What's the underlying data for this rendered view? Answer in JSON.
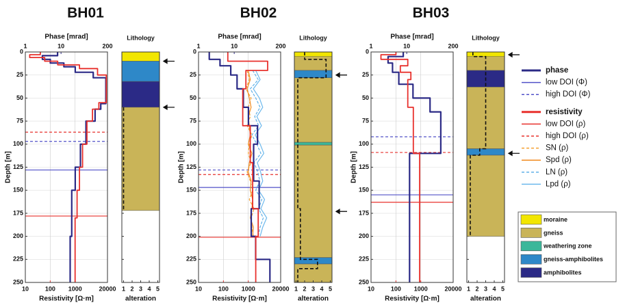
{
  "chart_data": [
    {
      "type": "line",
      "title": "BH01",
      "x2_label": "Phase [mrad]",
      "x_label": "Resistivity [Ω·m]",
      "y_label": "Depth [m]",
      "x2lim": [
        1,
        200
      ],
      "x2ticks": [
        1,
        10,
        200
      ],
      "xlim": [
        10,
        20000
      ],
      "xticks": [
        10,
        100,
        1000,
        20000
      ],
      "ylim": [
        0,
        250
      ],
      "yticks": [
        0,
        25,
        50,
        75,
        100,
        125,
        150,
        175,
        200,
        225,
        250
      ],
      "log_x": true,
      "grid": true,
      "series": [
        {
          "color": "#2b2a86",
          "width": 2.2,
          "dash": false,
          "axis": "x2",
          "depth": [
            0,
            4,
            4,
            8,
            8,
            12,
            12,
            16,
            16,
            22,
            22,
            28,
            28,
            56,
            56,
            62,
            62,
            75,
            75,
            100,
            100,
            125,
            125,
            150,
            150,
            200,
            200,
            250
          ],
          "values": [
            8,
            8,
            3,
            3,
            5,
            5,
            12,
            12,
            25,
            25,
            80,
            80,
            180,
            180,
            130,
            130,
            90,
            90,
            50,
            50,
            35,
            35,
            25,
            25,
            20,
            20,
            18,
            18
          ]
        },
        {
          "color": "#e8302c",
          "width": 1.8,
          "dash": false,
          "axis": "x",
          "depth": [
            0,
            3,
            3,
            6,
            6,
            10,
            10,
            14,
            14,
            18,
            18,
            25,
            25,
            55,
            55,
            62,
            62,
            75,
            75,
            100,
            100,
            125,
            125,
            150,
            150,
            180,
            180,
            250
          ],
          "values": [
            40,
            40,
            15,
            15,
            60,
            60,
            200,
            200,
            1500,
            1500,
            8000,
            8000,
            18000,
            18000,
            9000,
            9000,
            5000,
            5000,
            3000,
            3000,
            2000,
            2000,
            1500,
            1500,
            1200,
            1200,
            1000,
            1000
          ]
        }
      ],
      "doi": [
        {
          "color": "#5050c8",
          "dash": false,
          "depth": 128
        },
        {
          "color": "#5050c8",
          "dash": true,
          "depth": 97
        },
        {
          "color": "#e8302c",
          "dash": false,
          "depth": 178
        },
        {
          "color": "#e8302c",
          "dash": true,
          "depth": 87
        }
      ],
      "arrows": [
        10,
        60
      ],
      "lithology": {
        "title": "Lithology",
        "x_label": "alteration",
        "xlim": [
          0.8,
          5.2
        ],
        "xticks": [
          1,
          2,
          3,
          4,
          5
        ],
        "layers": [
          {
            "top": 0,
            "bottom": 10,
            "color": "#f2e600"
          },
          {
            "top": 10,
            "bottom": 32,
            "color": "#2e88c8"
          },
          {
            "top": 32,
            "bottom": 60,
            "color": "#2b2a86"
          },
          {
            "top": 60,
            "bottom": 172,
            "color": "#c9b458"
          }
        ],
        "alteration": {
          "depth": [
            60,
            172
          ],
          "values": [
            1,
            1
          ]
        }
      }
    },
    {
      "type": "line",
      "title": "BH02",
      "x2_label": "Phase [mrad]",
      "x_label": "Resistivity [Ω·m]",
      "y_label": "Depth [m]",
      "x2lim": [
        1,
        200
      ],
      "x2ticks": [
        1,
        10,
        200
      ],
      "xlim": [
        10,
        20000
      ],
      "xticks": [
        10,
        100,
        1000,
        20000
      ],
      "ylim": [
        0,
        250
      ],
      "yticks": [
        0,
        25,
        50,
        75,
        100,
        125,
        150,
        175,
        200,
        225,
        250
      ],
      "log_x": true,
      "grid": true,
      "series": [
        {
          "color": "#f5a030",
          "width": 1.2,
          "dash": true,
          "axis": "x",
          "depth": [
            20,
            30,
            40,
            50,
            60,
            70,
            80,
            90,
            100,
            110,
            120,
            130,
            140,
            150,
            160,
            170,
            180,
            190,
            200
          ],
          "values": [
            900,
            1100,
            800,
            1300,
            1000,
            1200,
            900,
            1400,
            1100,
            1000,
            1300,
            900,
            1200,
            1500,
            1100,
            1700,
            1300,
            1400,
            1600
          ]
        },
        {
          "color": "#f08a1e",
          "width": 1.2,
          "dash": false,
          "axis": "x",
          "depth": [
            20,
            30,
            40,
            50,
            60,
            70,
            80,
            90,
            100,
            110,
            120,
            130,
            140,
            150,
            160,
            170,
            180,
            190,
            200
          ],
          "values": [
            1000,
            1200,
            900,
            1100,
            1300,
            1000,
            1100,
            1200,
            1000,
            1400,
            1100,
            1000,
            1300,
            1200,
            1500,
            1400,
            1200,
            1600,
            1500
          ]
        },
        {
          "color": "#5fb0e8",
          "width": 1.2,
          "dash": true,
          "axis": "x",
          "depth": [
            20,
            30,
            40,
            50,
            60,
            70,
            80,
            90,
            100,
            110,
            120,
            130,
            140,
            150,
            160,
            170,
            180,
            190,
            200
          ],
          "values": [
            1500,
            2500,
            1200,
            2000,
            3000,
            1800,
            2600,
            1400,
            2200,
            3200,
            1700,
            2400,
            2900,
            2000,
            3500,
            2600,
            4000,
            3000,
            2500
          ]
        },
        {
          "color": "#6cb8ec",
          "width": 1.2,
          "dash": false,
          "axis": "x",
          "depth": [
            20,
            30,
            40,
            50,
            60,
            70,
            80,
            90,
            100,
            110,
            120,
            130,
            140,
            150,
            160,
            170,
            180,
            190,
            200
          ],
          "values": [
            2000,
            3000,
            1600,
            2800,
            3800,
            2200,
            3400,
            1900,
            3000,
            4200,
            2300,
            3100,
            3800,
            2600,
            4500,
            3200,
            5500,
            3800,
            3000
          ]
        },
        {
          "color": "#2b2a86",
          "width": 2.2,
          "dash": false,
          "axis": "x2",
          "depth": [
            0,
            8,
            8,
            15,
            15,
            25,
            25,
            40,
            40,
            60,
            60,
            80,
            80,
            100,
            100,
            140,
            140,
            170,
            170,
            200,
            200,
            225,
            225,
            250
          ],
          "values": [
            2,
            2,
            4,
            4,
            8,
            8,
            12,
            12,
            18,
            18,
            25,
            25,
            45,
            45,
            35,
            35,
            50,
            50,
            30,
            30,
            40,
            40,
            100,
            100
          ]
        },
        {
          "color": "#e8302c",
          "width": 1.8,
          "dash": false,
          "axis": "x",
          "depth": [
            0,
            10,
            10,
            20,
            20,
            40,
            40,
            80,
            80,
            120,
            120,
            170,
            170,
            200,
            200,
            250
          ],
          "values": [
            150,
            150,
            6000,
            6000,
            800,
            800,
            600,
            600,
            1200,
            1200,
            1500,
            1500,
            2500,
            2500,
            2000,
            2000
          ]
        }
      ],
      "doi": [
        {
          "color": "#5050c8",
          "dash": false,
          "depth": 147
        },
        {
          "color": "#5050c8",
          "dash": true,
          "depth": 128
        },
        {
          "color": "#e8302c",
          "dash": true,
          "depth": 133
        },
        {
          "color": "#e8302c",
          "dash": false,
          "depth": 201
        }
      ],
      "arrows": [
        25,
        173
      ],
      "lithology": {
        "title": "Lithology",
        "x_label": "alteration",
        "xlim": [
          0.8,
          5.2
        ],
        "xticks": [
          1,
          2,
          3,
          4,
          5
        ],
        "layers": [
          {
            "top": 0,
            "bottom": 5,
            "color": "#f2e600"
          },
          {
            "top": 5,
            "bottom": 20,
            "color": "#c9b458"
          },
          {
            "top": 20,
            "bottom": 28,
            "color": "#2e88c8"
          },
          {
            "top": 28,
            "bottom": 98,
            "color": "#c9b458"
          },
          {
            "top": 98,
            "bottom": 101,
            "color": "#3bb79a"
          },
          {
            "top": 101,
            "bottom": 223,
            "color": "#c9b458"
          },
          {
            "top": 223,
            "bottom": 230,
            "color": "#2e88c8"
          },
          {
            "top": 230,
            "bottom": 250,
            "color": "#c9b458"
          }
        ],
        "alteration": {
          "depth": [
            0,
            8,
            8,
            18,
            18,
            28,
            28,
            170,
            170,
            225,
            225,
            235,
            235,
            250
          ],
          "values": [
            2,
            2,
            4.5,
            4.5,
            4.5,
            4.5,
            1.2,
            1.2,
            1.5,
            1.5,
            3.5,
            3.5,
            1.2,
            1.2
          ]
        }
      }
    },
    {
      "type": "line",
      "title": "BH03",
      "x2_label": "Phase [mrad]",
      "x_label": "Resistivity [Ω·m]",
      "y_label": "Depth [m]",
      "x2lim": [
        1,
        200
      ],
      "x2ticks": [
        1,
        10,
        200
      ],
      "xlim": [
        10,
        20000
      ],
      "xticks": [
        10,
        100,
        1000,
        20000
      ],
      "ylim": [
        0,
        250
      ],
      "yticks": [
        0,
        25,
        50,
        75,
        100,
        125,
        150,
        175,
        200,
        225,
        250
      ],
      "log_x": true,
      "grid": true,
      "series": [
        {
          "color": "#2b2a86",
          "width": 2.2,
          "dash": false,
          "axis": "x2",
          "depth": [
            0,
            5,
            5,
            12,
            12,
            22,
            22,
            35,
            35,
            50,
            50,
            65,
            65,
            110,
            110,
            250
          ],
          "values": [
            8,
            8,
            3,
            3,
            4,
            4,
            6,
            6,
            15,
            15,
            45,
            45,
            90,
            90,
            12,
            12
          ]
        },
        {
          "color": "#e8302c",
          "width": 1.8,
          "dash": false,
          "axis": "x",
          "depth": [
            0,
            3,
            3,
            8,
            8,
            15,
            15,
            22,
            22,
            30,
            30,
            60,
            60,
            110,
            110,
            250
          ],
          "values": [
            100,
            100,
            25,
            25,
            300,
            300,
            150,
            150,
            400,
            400,
            300,
            300,
            500,
            500,
            900,
            900
          ]
        }
      ],
      "doi": [
        {
          "color": "#5050c8",
          "dash": true,
          "depth": 92
        },
        {
          "color": "#e8302c",
          "dash": true,
          "depth": 109
        },
        {
          "color": "#5050c8",
          "dash": false,
          "depth": 155
        },
        {
          "color": "#e8302c",
          "dash": false,
          "depth": 163
        }
      ],
      "arrows": [
        3,
        110
      ],
      "lithology": {
        "title": "Lithology",
        "x_label": "alteration",
        "xlim": [
          0.8,
          5.2
        ],
        "xticks": [
          1,
          2,
          3,
          4,
          5
        ],
        "layers": [
          {
            "top": 0,
            "bottom": 5,
            "color": "#f2e600"
          },
          {
            "top": 5,
            "bottom": 20,
            "color": "#c9b458"
          },
          {
            "top": 20,
            "bottom": 38,
            "color": "#2b2a86"
          },
          {
            "top": 38,
            "bottom": 105,
            "color": "#c9b458"
          },
          {
            "top": 105,
            "bottom": 112,
            "color": "#2e88c8"
          },
          {
            "top": 112,
            "bottom": 200,
            "color": "#c9b458"
          }
        ],
        "alteration": {
          "depth": [
            0,
            5,
            5,
            105,
            105,
            112,
            112,
            200
          ],
          "values": [
            1.5,
            1.5,
            3,
            3,
            2.3,
            2.3,
            1.2,
            1.2
          ]
        }
      }
    }
  ],
  "legend": {
    "lines": [
      {
        "name": "phase",
        "color": "#2b2a86",
        "width": 3,
        "dash": false,
        "bold": true
      },
      {
        "name": "low DOI (Φ)",
        "color": "#5050c8",
        "width": 1.5,
        "dash": false,
        "bold": false
      },
      {
        "name": "high DOI (Φ)",
        "color": "#5050c8",
        "width": 1.5,
        "dash": true,
        "bold": false
      },
      {
        "name": "resistivity",
        "color": "#e8302c",
        "width": 3,
        "dash": false,
        "bold": true
      },
      {
        "name": "low DOI (ρ)",
        "color": "#e8302c",
        "width": 1.5,
        "dash": false,
        "bold": false
      },
      {
        "name": "high DOI (ρ)",
        "color": "#e8302c",
        "width": 1.5,
        "dash": true,
        "bold": false
      },
      {
        "name": "SN (ρ)",
        "color": "#f5a030",
        "width": 1.5,
        "dash": true,
        "bold": false
      },
      {
        "name": "Spd (ρ)",
        "color": "#f08a1e",
        "width": 1.5,
        "dash": false,
        "bold": false
      },
      {
        "name": "LN (ρ)",
        "color": "#5fb0e8",
        "width": 1.5,
        "dash": true,
        "bold": false
      },
      {
        "name": "Lpd (ρ)",
        "color": "#6cb8ec",
        "width": 1.5,
        "dash": false,
        "bold": false
      }
    ],
    "lithology": [
      {
        "name": "moraine",
        "color": "#f2e600"
      },
      {
        "name": "gneiss",
        "color": "#c9b458"
      },
      {
        "name": "weathering zone",
        "color": "#3bb79a"
      },
      {
        "name": "gneiss-amphibolites",
        "color": "#2e88c8"
      },
      {
        "name": "amphibolites",
        "color": "#2b2a86"
      }
    ]
  }
}
